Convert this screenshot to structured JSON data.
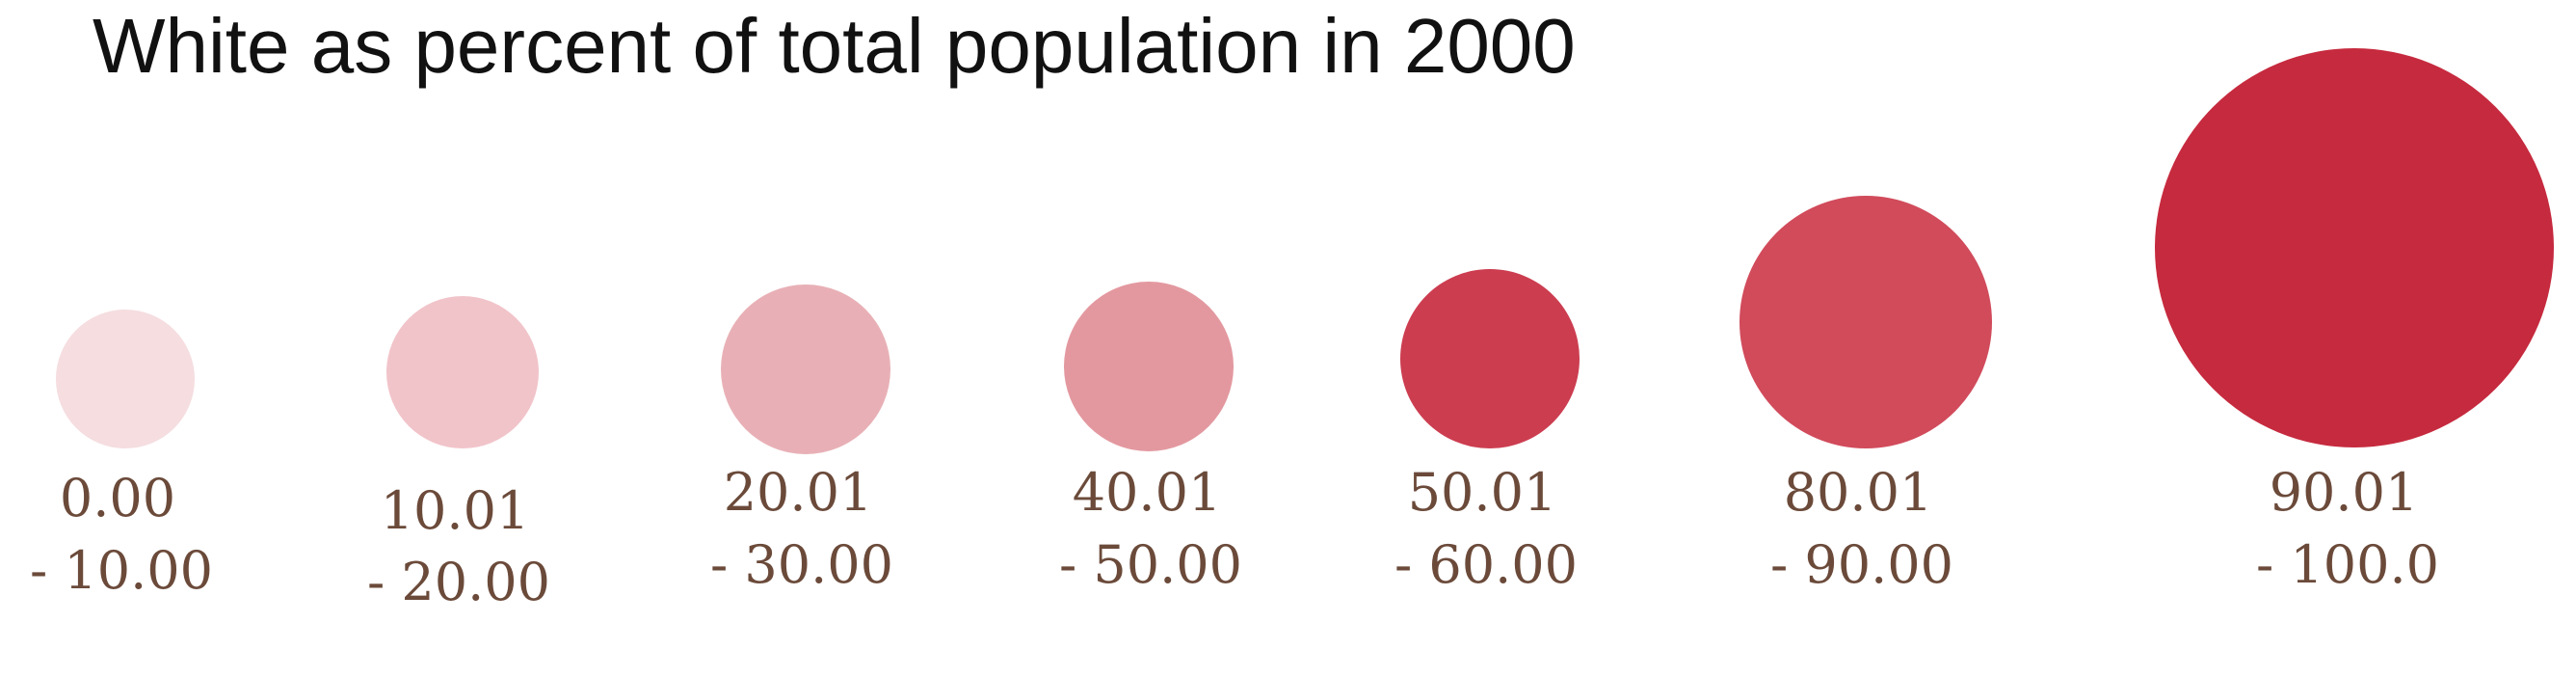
{
  "title": "White as percent of total population in 2000",
  "colors": {
    "title_text": "#111111",
    "label_text": "#6b4a3a"
  },
  "legend": {
    "items": [
      {
        "line1": "0.00",
        "line2": "- 10.00",
        "color": "#f5dde0"
      },
      {
        "line1": "10.01",
        "line2": "- 20.00",
        "color": "#f1c4ca"
      },
      {
        "line1": "20.01",
        "line2": "- 30.00",
        "color": "#e8b0b6"
      },
      {
        "line1": "40.01",
        "line2": "- 50.00",
        "color": "#e3989f"
      },
      {
        "line1": "50.01",
        "line2": "- 60.00",
        "color": "#cc3d50"
      },
      {
        "line1": "80.01",
        "line2": "- 90.00",
        "color": "#d14b5b"
      },
      {
        "line1": "90.01",
        "line2": "- 100.0",
        "color": "#c62a3e"
      }
    ]
  }
}
